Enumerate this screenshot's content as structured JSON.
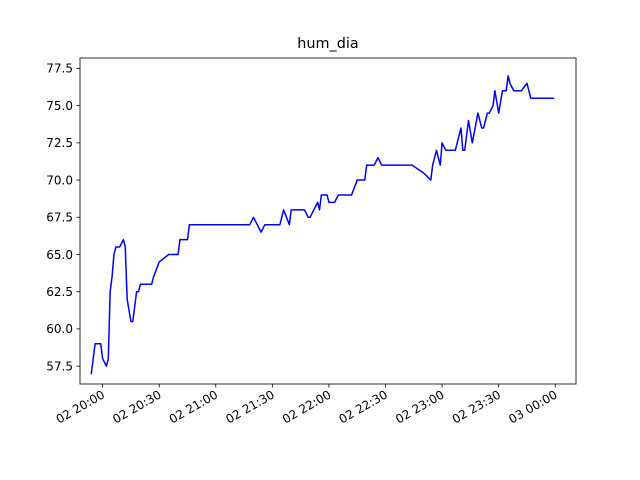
{
  "chart_data": {
    "type": "line",
    "title": "hum_dia",
    "xlabel": "",
    "ylabel": "",
    "grid": false,
    "xlim": [
      "2024-01-02 19:48",
      "2024-01-03 00:11"
    ],
    "ylim": [
      56.3,
      78.2
    ],
    "yticks": [
      57.5,
      60.0,
      62.5,
      65.0,
      67.5,
      70.0,
      72.5,
      75.0,
      77.5
    ],
    "ytick_labels": [
      "57.5",
      "60.0",
      "62.5",
      "65.0",
      "67.5",
      "70.0",
      "72.5",
      "75.0",
      "77.5"
    ],
    "xticks": [
      "2024-01-02 20:00",
      "2024-01-02 20:30",
      "2024-01-02 21:00",
      "2024-01-02 21:30",
      "2024-01-02 22:00",
      "2024-01-02 22:30",
      "2024-01-02 23:00",
      "2024-01-02 23:30",
      "2024-01-03 00:00"
    ],
    "xtick_labels": [
      "02 20:00",
      "02 20:30",
      "02 21:00",
      "02 21:30",
      "02 22:00",
      "02 22:30",
      "02 23:00",
      "02 23:30",
      "03 00:00"
    ],
    "series": [
      {
        "color": "#0000ff",
        "x": [
          "2024-01-02 19:54",
          "2024-01-02 19:56",
          "2024-01-02 19:59",
          "2024-01-02 20:00",
          "2024-01-02 20:02",
          "2024-01-02 20:03",
          "2024-01-02 20:04",
          "2024-01-02 20:05",
          "2024-01-02 20:06",
          "2024-01-02 20:07",
          "2024-01-02 20:09",
          "2024-01-02 20:11",
          "2024-01-02 20:12",
          "2024-01-02 20:13",
          "2024-01-02 20:15",
          "2024-01-02 20:16",
          "2024-01-02 20:18",
          "2024-01-02 20:19",
          "2024-01-02 20:20",
          "2024-01-02 20:23",
          "2024-01-02 20:24",
          "2024-01-02 20:25",
          "2024-01-02 20:26",
          "2024-01-02 20:27",
          "2024-01-02 20:30",
          "2024-01-02 20:35",
          "2024-01-02 20:40",
          "2024-01-02 20:41",
          "2024-01-02 20:42",
          "2024-01-02 20:45",
          "2024-01-02 20:46",
          "2024-01-02 20:50",
          "2024-01-02 21:05",
          "2024-01-02 21:15",
          "2024-01-02 21:18",
          "2024-01-02 21:20",
          "2024-01-02 21:22",
          "2024-01-02 21:24",
          "2024-01-02 21:26",
          "2024-01-02 21:29",
          "2024-01-02 21:30",
          "2024-01-02 21:31",
          "2024-01-02 21:32",
          "2024-01-02 21:34",
          "2024-01-02 21:36",
          "2024-01-02 21:39",
          "2024-01-02 21:40",
          "2024-01-02 21:42",
          "2024-01-02 21:45",
          "2024-01-02 21:47",
          "2024-01-02 21:49",
          "2024-01-02 21:50",
          "2024-01-02 21:52",
          "2024-01-02 21:54",
          "2024-01-02 21:55",
          "2024-01-02 21:56",
          "2024-01-02 21:59",
          "2024-01-02 22:00",
          "2024-01-02 22:03",
          "2024-01-02 22:05",
          "2024-01-02 22:07",
          "2024-01-02 22:09",
          "2024-01-02 22:12",
          "2024-01-02 22:15",
          "2024-01-02 22:19",
          "2024-01-02 22:20",
          "2024-01-02 22:22",
          "2024-01-02 22:24",
          "2024-01-02 22:26",
          "2024-01-02 22:28",
          "2024-01-02 22:33",
          "2024-01-02 22:35",
          "2024-01-02 22:38",
          "2024-01-02 22:44",
          "2024-01-02 22:50",
          "2024-01-02 22:54",
          "2024-01-02 22:55",
          "2024-01-02 22:57",
          "2024-01-02 22:59",
          "2024-01-02 23:00",
          "2024-01-02 23:02",
          "2024-01-02 23:04",
          "2024-01-02 23:07",
          "2024-01-02 23:10",
          "2024-01-02 23:11",
          "2024-01-02 23:12",
          "2024-01-02 23:14",
          "2024-01-02 23:16",
          "2024-01-02 23:19",
          "2024-01-02 23:21",
          "2024-01-02 23:22",
          "2024-01-02 23:24",
          "2024-01-02 23:25",
          "2024-01-02 23:27",
          "2024-01-02 23:28",
          "2024-01-02 23:30",
          "2024-01-02 23:32",
          "2024-01-02 23:34",
          "2024-01-02 23:35",
          "2024-01-02 23:36",
          "2024-01-02 23:38",
          "2024-01-02 23:40",
          "2024-01-02 23:42",
          "2024-01-02 23:45",
          "2024-01-02 23:47",
          "2024-01-02 23:49",
          "2024-01-02 23:52",
          "2024-01-02 23:54",
          "2024-01-02 23:57",
          "2024-01-02 23:59"
        ],
        "y": [
          57.0,
          59.0,
          59.0,
          58.0,
          57.5,
          58.0,
          62.5,
          63.5,
          65.0,
          65.5,
          65.5,
          66.0,
          65.5,
          62.0,
          60.5,
          60.5,
          62.5,
          62.5,
          63.0,
          63.0,
          63.0,
          63.0,
          63.0,
          63.5,
          64.5,
          65.0,
          65.0,
          66.0,
          66.0,
          66.0,
          67.0,
          67.0,
          67.0,
          67.0,
          67.0,
          67.5,
          67.0,
          66.5,
          67.0,
          67.0,
          67.0,
          67.0,
          67.0,
          67.0,
          68.0,
          67.0,
          68.0,
          68.0,
          68.0,
          68.0,
          67.5,
          67.5,
          68.0,
          68.5,
          68.0,
          69.0,
          69.0,
          68.5,
          68.5,
          69.0,
          69.0,
          69.0,
          69.0,
          70.0,
          70.0,
          71.0,
          71.0,
          71.0,
          71.5,
          71.0,
          71.0,
          71.0,
          71.0,
          71.0,
          70.5,
          70.0,
          71.0,
          72.0,
          71.0,
          72.5,
          72.0,
          72.0,
          72.0,
          73.5,
          72.0,
          72.0,
          74.0,
          72.5,
          74.5,
          73.5,
          73.5,
          74.5,
          74.5,
          75.0,
          76.0,
          74.5,
          76.0,
          76.0,
          77.0,
          76.5,
          76.0,
          76.0,
          76.0,
          76.5,
          75.5,
          75.5,
          75.5,
          75.5,
          75.5,
          75.5
        ]
      }
    ]
  }
}
